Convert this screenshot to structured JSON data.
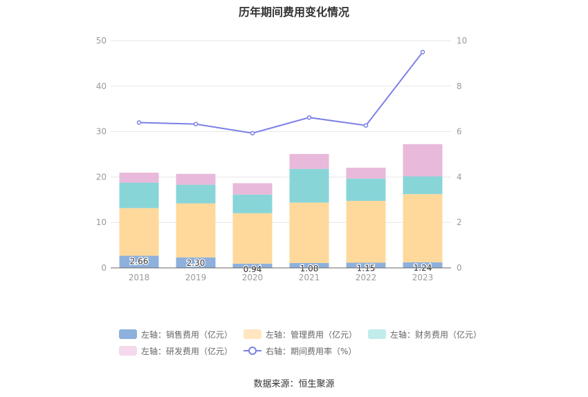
{
  "chart_data": {
    "type": "bar",
    "title": "历年期间费用变化情况",
    "categories": [
      "2018",
      "2019",
      "2020",
      "2021",
      "2022",
      "2023"
    ],
    "y_left": {
      "min": 0,
      "max": 50,
      "ticks": [
        0,
        10,
        20,
        30,
        40,
        50
      ]
    },
    "y_right": {
      "min": 0,
      "max": 10,
      "ticks": [
        0,
        2,
        4,
        6,
        8,
        10
      ]
    },
    "stacked": true,
    "series": [
      {
        "name": "左轴：销售费用（亿元）",
        "axis": "left",
        "type": "bar",
        "color": "#8eb0dc",
        "values": [
          2.66,
          2.3,
          0.94,
          1.08,
          1.15,
          1.24
        ],
        "labels": [
          "2.66",
          "2.30",
          "0.94",
          "1.08",
          "1.15",
          "1.24"
        ]
      },
      {
        "name": "左轴：管理费用（亿元）",
        "axis": "left",
        "type": "bar",
        "color": "#ffd99b",
        "values": [
          10.5,
          11.9,
          11.1,
          13.3,
          13.6,
          15.0
        ]
      },
      {
        "name": "左轴：财务费用（亿元）",
        "axis": "left",
        "type": "bar",
        "color": "#88d5d8",
        "values": [
          5.6,
          4.1,
          4.1,
          7.4,
          4.9,
          3.9
        ]
      },
      {
        "name": "左轴：研发费用（亿元）",
        "axis": "left",
        "type": "bar",
        "color": "#e8b9da",
        "values": [
          2.2,
          2.4,
          2.5,
          3.3,
          2.4,
          7.1
        ]
      },
      {
        "name": "右轴：期间费用率（%）",
        "axis": "right",
        "type": "line",
        "color": "#7b7fe6",
        "values": [
          6.4,
          6.33,
          5.93,
          6.62,
          6.27,
          9.5
        ]
      }
    ],
    "legend_position": "bottom",
    "grid": true
  },
  "legend": [
    [
      "左轴：销售费用（亿元）",
      "左轴：管理费用（亿元）",
      "左轴：财务费用（亿元）"
    ],
    [
      "左轴：研发费用（亿元）",
      "右轴：期间费用率（%）"
    ]
  ],
  "legend_colors": [
    "#8eb0dc",
    "#ffe6c0",
    "#c0ecec",
    "#f4d9ec",
    "#7b7fe6"
  ],
  "source": "数据来源：恒生聚源"
}
